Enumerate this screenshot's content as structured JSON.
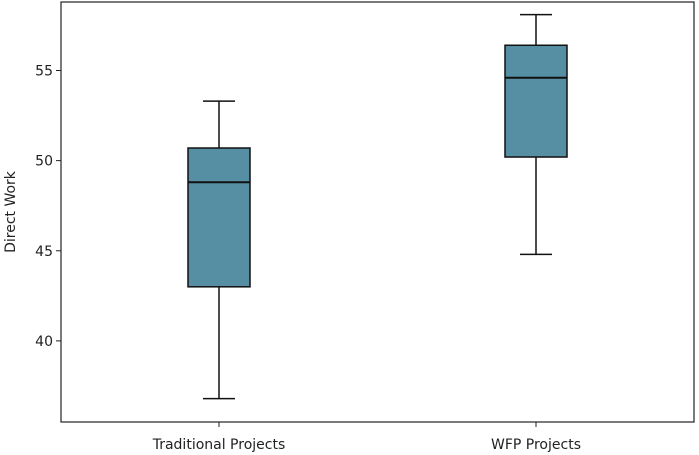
{
  "chart_data": {
    "type": "box",
    "title": "",
    "xlabel": "",
    "ylabel": "Direct Work",
    "ylim": [
      35.5,
      58.8
    ],
    "yticks": [
      40,
      45,
      50,
      55
    ],
    "grid": false,
    "categories": [
      "Traditional Projects",
      "WFP Projects"
    ],
    "boxes": [
      {
        "name": "Traditional Projects",
        "min": 36.8,
        "q1": 43.0,
        "median": 48.8,
        "q3": 50.7,
        "max": 53.3
      },
      {
        "name": "WFP Projects",
        "min": 44.8,
        "q1": 50.2,
        "median": 54.6,
        "q3": 56.4,
        "max": 58.1
      }
    ],
    "colors": {
      "box_fill": "#568fa4",
      "box_edge": "#111111",
      "axis": "#222222"
    }
  }
}
